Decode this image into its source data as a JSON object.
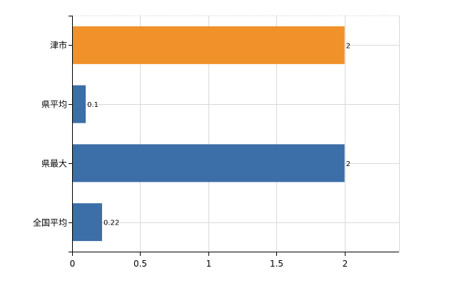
{
  "chart_data": {
    "type": "bar",
    "orientation": "horizontal",
    "categories": [
      "津市",
      "県平均",
      "県最大",
      "全国平均"
    ],
    "values": [
      2,
      0.1,
      2,
      0.22
    ],
    "value_labels": [
      "2",
      "0.1",
      "2",
      "0.22"
    ],
    "bar_colors": [
      "#f0912a",
      "#3c6ea8",
      "#3c6ea8",
      "#3c6ea8"
    ],
    "xlim": [
      0,
      2.4
    ],
    "xticks": [
      0,
      0.5,
      1,
      1.5,
      2
    ],
    "xtick_labels": [
      "0",
      "0.5",
      "1",
      "1.5",
      "2"
    ],
    "title": "",
    "xlabel": "",
    "ylabel": "",
    "grid": true,
    "legend": "none"
  }
}
